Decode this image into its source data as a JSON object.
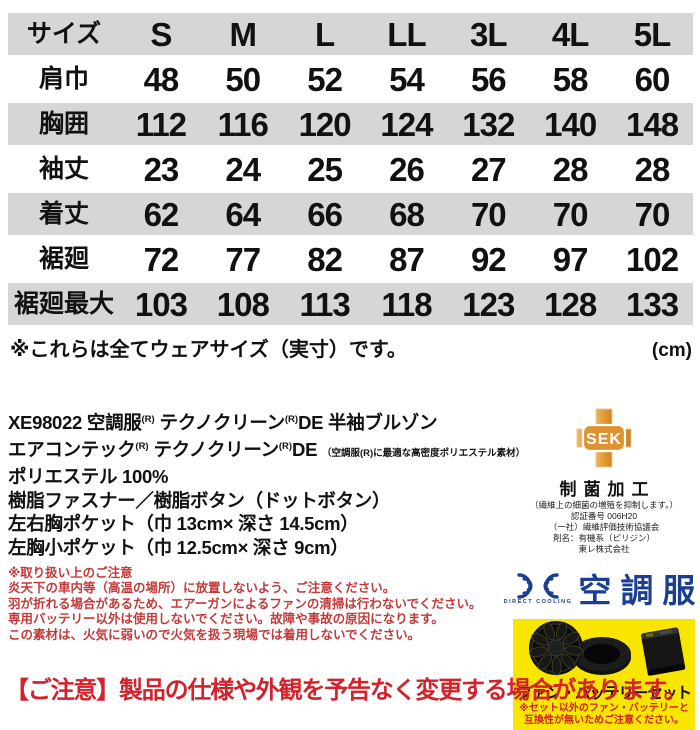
{
  "colors": {
    "row_gray": "#d6d6d6",
    "accent_red": "#d2232d",
    "warning_red": "#c23a3a",
    "fan_warning_red": "#cc2222",
    "sek_orange": "#dd9430",
    "logo_navy": "#1c3e91",
    "highlight_yellow": "#f8e500"
  },
  "size_table": {
    "header": [
      "サイズ",
      "S",
      "M",
      "L",
      "LL",
      "3L",
      "4L",
      "5L"
    ],
    "rows": [
      {
        "label": "肩巾",
        "values": [
          "48",
          "50",
          "52",
          "54",
          "56",
          "58",
          "60"
        ]
      },
      {
        "label": "胸囲",
        "values": [
          "112",
          "116",
          "120",
          "124",
          "132",
          "140",
          "148"
        ]
      },
      {
        "label": "袖丈",
        "values": [
          "23",
          "24",
          "25",
          "26",
          "27",
          "28",
          "28"
        ]
      },
      {
        "label": "着丈",
        "values": [
          "62",
          "64",
          "66",
          "68",
          "70",
          "70",
          "70"
        ]
      },
      {
        "label": "裾廻",
        "values": [
          "72",
          "77",
          "82",
          "87",
          "92",
          "97",
          "102"
        ]
      },
      {
        "label": "裾廻最大",
        "values": [
          "103",
          "108",
          "113",
          "118",
          "123",
          "128",
          "133"
        ]
      }
    ],
    "note": "※これらは全てウェアサイズ（実寸）です。",
    "unit_label": "(cm)"
  },
  "product": {
    "description_lines": [
      {
        "segs": [
          {
            "t": "XE98022 空調服"
          },
          {
            "t": "(R)",
            "s": "sup"
          },
          {
            "t": " テクノクリーン"
          },
          {
            "t": "(R)",
            "s": "sup"
          },
          {
            "t": "DE 半袖ブルゾン"
          }
        ]
      },
      {
        "segs": [
          {
            "t": "エアコンテック"
          },
          {
            "t": "(R)",
            "s": "sup"
          },
          {
            "t": " テクノクリーン"
          },
          {
            "t": "(R)",
            "s": "sup"
          },
          {
            "t": "DE "
          },
          {
            "t": "（空調服(R)に最適な高密度ポリエステル素材）",
            "s": "small"
          }
        ]
      },
      {
        "segs": [
          {
            "t": "ポリエステル 100%"
          }
        ]
      },
      {
        "segs": [
          {
            "t": "樹脂ファスナー／樹脂ボタン（ドットボタン）"
          }
        ]
      },
      {
        "segs": [
          {
            "t": "左右胸ポケット（巾 13cm× 深さ 14.5cm）"
          }
        ]
      },
      {
        "segs": [
          {
            "t": "左胸小ポケット（巾 12.5cm× 深さ 9cm）"
          }
        ]
      }
    ],
    "handling_notice": {
      "title": "※取り扱い上のご注意",
      "lines": [
        "炎天下の車内等（高温の場所）に放置しないよう、ご注意ください。",
        "羽が折れる場合があるため、エアーガンによるファンの清掃は行わないでください。",
        "専用バッテリー以外は使用しないでください。故障や事故の原因になります。",
        "この素材は、火気に弱いので火気を扱う現場では着用しないでください。"
      ]
    }
  },
  "sek_mark": {
    "acronym": "SEK",
    "title": "制菌加工",
    "lines": [
      "（繊維上の細菌の増殖を抑制します。）",
      "認証番号 006H20",
      "（一社）繊維評価技術協議会",
      "剤名：有機系（ピリジン）",
      "東レ株式会社"
    ]
  },
  "kuchofuku_logo": {
    "caption": "DIRECT COOLING",
    "brand": "空調服"
  },
  "fan_battery": {
    "title": "ファン・バッテリーセット",
    "warning_lines": [
      "※セット以外のファン・バッテリーと",
      "互換性が無いためご注意ください。"
    ]
  },
  "footer_notice": "【ご注意】製品の仕様や外観を予告なく変更する場合があります。"
}
